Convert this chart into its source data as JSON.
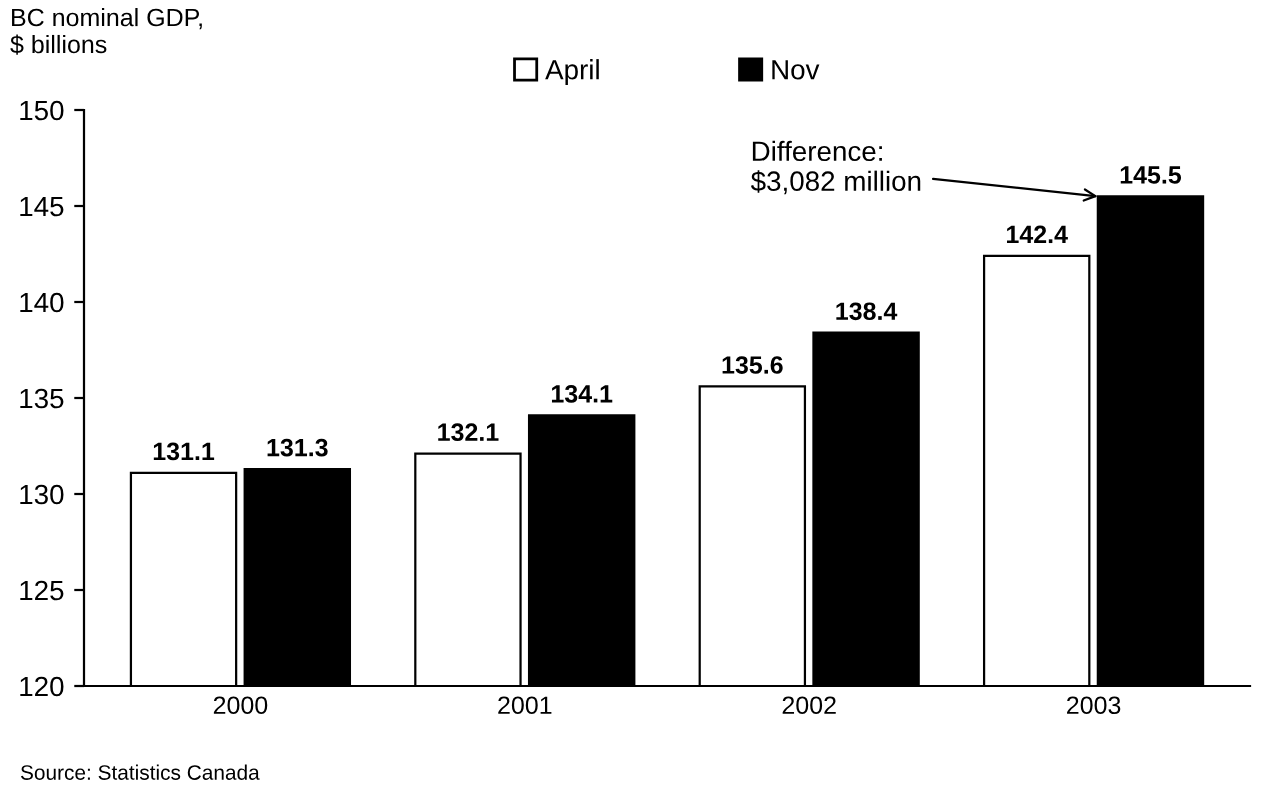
{
  "chart_data": {
    "type": "bar",
    "ylabel": "BC nominal GDP,\n$ billions",
    "categories": [
      "2000",
      "2001",
      "2002",
      "2003"
    ],
    "series": [
      {
        "name": "April",
        "color": "#ffffff",
        "values": [
          131.1,
          132.1,
          135.6,
          142.4
        ]
      },
      {
        "name": "Nov",
        "color": "#000000",
        "values": [
          131.3,
          134.1,
          138.4,
          145.5
        ]
      }
    ],
    "ylim": [
      120,
      150
    ],
    "yticks": [
      120,
      125,
      130,
      135,
      140,
      145,
      150
    ],
    "data_labels": true,
    "legend": "top",
    "grid": false,
    "annotations": [
      {
        "text": "Difference:\n$3,082 million",
        "x": "2003",
        "y": 145.5
      },
      "Source: Statistics Canada"
    ]
  }
}
